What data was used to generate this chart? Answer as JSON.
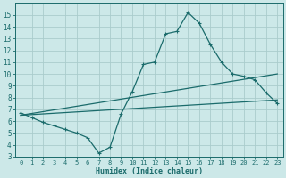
{
  "xlabel": "Humidex (Indice chaleur)",
  "background_color": "#cce8e8",
  "grid_color": "#aacccc",
  "line_color": "#1a6b6b",
  "x_min": -0.5,
  "x_max": 23.5,
  "y_min": 3,
  "y_max": 16,
  "x_ticks": [
    0,
    1,
    2,
    3,
    4,
    5,
    6,
    7,
    8,
    9,
    10,
    11,
    12,
    13,
    14,
    15,
    16,
    17,
    18,
    19,
    20,
    21,
    22,
    23
  ],
  "y_ticks": [
    3,
    4,
    5,
    6,
    7,
    8,
    9,
    10,
    11,
    12,
    13,
    14,
    15
  ],
  "curve1_x": [
    0,
    1,
    2,
    3,
    4,
    5,
    6,
    7,
    8,
    9,
    10,
    11,
    12,
    13,
    14,
    15,
    16,
    17,
    18,
    19,
    20,
    21,
    22,
    23
  ],
  "curve1_y": [
    6.7,
    6.3,
    5.9,
    5.6,
    5.3,
    5.0,
    4.6,
    3.3,
    3.8,
    6.6,
    8.5,
    10.8,
    11.0,
    13.4,
    13.6,
    15.2,
    14.3,
    12.5,
    11.0,
    10.0,
    9.8,
    9.5,
    8.4,
    7.5
  ],
  "curve2_x": [
    0,
    23
  ],
  "curve2_y": [
    6.5,
    10.0
  ],
  "curve3_x": [
    0,
    23
  ],
  "curve3_y": [
    6.5,
    7.8
  ]
}
